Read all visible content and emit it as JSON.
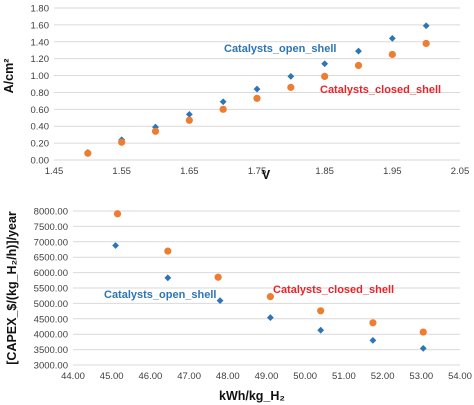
{
  "colors": {
    "open_shell": "#2e75b6",
    "closed_shell": "#ed7d31",
    "grid": "#d9d9d9",
    "tick_text": "#404040"
  },
  "chart_data": [
    {
      "type": "scatter",
      "title": "",
      "xlabel": "V",
      "ylabel": "A/cm²",
      "xlim": [
        1.45,
        2.05
      ],
      "ylim": [
        0,
        1.8
      ],
      "xticks": [
        "1.45",
        "1.55",
        "1.65",
        "1.75",
        "1.85",
        "1.95",
        "2.05"
      ],
      "yticks": [
        "0.00",
        "0.20",
        "0.40",
        "0.60",
        "0.80",
        "1.00",
        "1.20",
        "1.40",
        "1.60",
        "1.80"
      ],
      "grid": "horizontal",
      "series": [
        {
          "name": "Catalysts_open_shell",
          "marker": "diamond",
          "color": "#2e75b6",
          "x": [
            1.5,
            1.55,
            1.6,
            1.65,
            1.7,
            1.75,
            1.8,
            1.85,
            1.9,
            1.95,
            2.0
          ],
          "y": [
            0.09,
            0.24,
            0.39,
            0.54,
            0.69,
            0.84,
            0.99,
            1.14,
            1.29,
            1.44,
            1.59
          ]
        },
        {
          "name": "Catalysts_closed_shell",
          "marker": "circle",
          "color": "#ed7d31",
          "x": [
            1.5,
            1.55,
            1.6,
            1.65,
            1.7,
            1.75,
            1.8,
            1.85,
            1.9,
            1.95,
            2.0
          ],
          "y": [
            0.08,
            0.21,
            0.34,
            0.47,
            0.6,
            0.73,
            0.86,
            0.99,
            1.12,
            1.25,
            1.38
          ]
        }
      ]
    },
    {
      "type": "scatter",
      "title": "",
      "xlabel": "kWh/kg_H₂",
      "ylabel": "[CAPEX_$/(kg_H₂/h)]/year",
      "xlim": [
        44,
        54
      ],
      "ylim": [
        3000,
        8000
      ],
      "xticks": [
        "44.00",
        "45.00",
        "46.00",
        "47.00",
        "48.00",
        "49.00",
        "50.00",
        "51.00",
        "52.00",
        "53.00",
        "54.00"
      ],
      "yticks": [
        "3000.00",
        "3500.00",
        "4000.00",
        "4500.00",
        "5000.00",
        "5500.00",
        "6000.00",
        "6500.00",
        "7000.00",
        "7500.00",
        "8000.00"
      ],
      "grid": "horizontal",
      "series": [
        {
          "name": "Catalysts_open_shell",
          "marker": "diamond",
          "color": "#2e75b6",
          "x": [
            45.1,
            46.45,
            47.8,
            49.1,
            50.4,
            51.75,
            53.05
          ],
          "y": [
            6880,
            5830,
            5090,
            4540,
            4130,
            3800,
            3540
          ]
        },
        {
          "name": "Catalysts_closed_shell",
          "marker": "circle",
          "color": "#ed7d31",
          "x": [
            45.15,
            46.45,
            47.75,
            49.1,
            50.4,
            51.75,
            53.05
          ],
          "y": [
            7910,
            6700,
            5850,
            5220,
            4760,
            4370,
            4070
          ]
        }
      ]
    }
  ]
}
